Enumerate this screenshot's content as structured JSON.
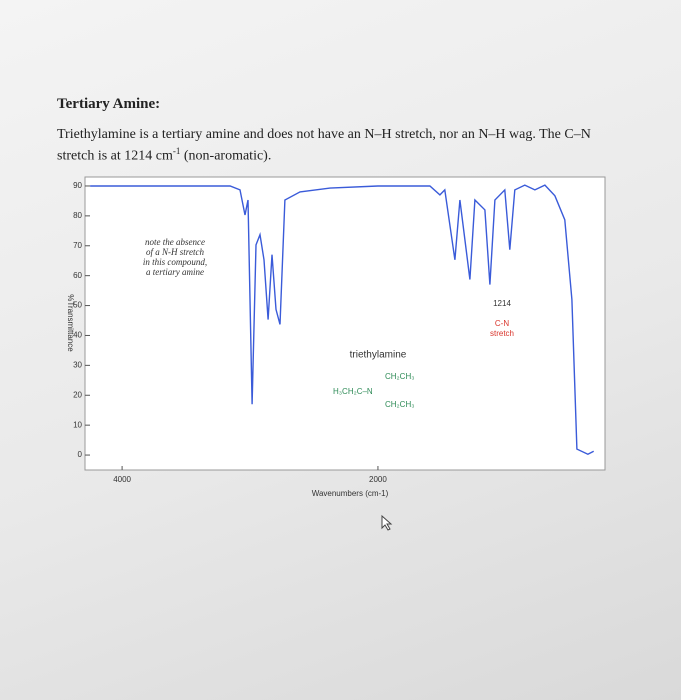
{
  "heading": "Tertiary Amine:",
  "paragraph": {
    "text": "Triethylamine is a tertiary amine and does not have an N–H stretch, nor an N–H wag. The C–N stretch is at 1214 cm",
    "superscript": "-1",
    "text_after": " (non-aromatic)."
  },
  "chart_data": {
    "type": "line",
    "x_label": "Wavenumbers (cm-1)",
    "y_label": "%Transmittance",
    "x": [
      4250,
      3156,
      3078,
      3039,
      3016,
      2984,
      2953,
      2922,
      2891,
      2859,
      2828,
      2797,
      2766,
      2727,
      2609,
      2375,
      2000,
      1594,
      1516,
      1477,
      1398,
      1359,
      1281,
      1242,
      1164,
      1125,
      1086,
      1008,
      969,
      930,
      852,
      773,
      695,
      617,
      539,
      484,
      445,
      359,
      313
    ],
    "values": [
      90,
      90,
      88.7,
      80.3,
      85.3,
      17,
      70.3,
      73.7,
      65.3,
      45.3,
      67,
      48.7,
      43.7,
      85.3,
      88,
      89.3,
      90,
      90,
      87,
      88.7,
      65.3,
      85.3,
      58.7,
      85.3,
      82,
      57,
      85.3,
      88.7,
      68.7,
      88.7,
      90.3,
      88.7,
      90.3,
      86.7,
      78.7,
      52,
      2,
      0.3,
      1.3
    ],
    "color": "#3a5bd9",
    "xlim": [
      4290,
      225
    ],
    "xticks": [
      4000,
      2000
    ],
    "ylim": [
      -5,
      93
    ],
    "yticks": [
      0,
      10,
      20,
      30,
      40,
      50,
      60,
      70,
      80,
      90
    ],
    "note": [
      "note the absence",
      "of a N-H stretch",
      "in this compound,",
      "a tertiary amine"
    ],
    "peak_label": "1214",
    "peak_annotation": [
      "C-N",
      "stretch"
    ],
    "peak_color": "#d9342b",
    "compound": "triethylamine",
    "structure": [
      "CH₂CH₃",
      "H₃CH₂C–N",
      "CH₂CH₃"
    ],
    "structure_color": "#2e8b57"
  }
}
